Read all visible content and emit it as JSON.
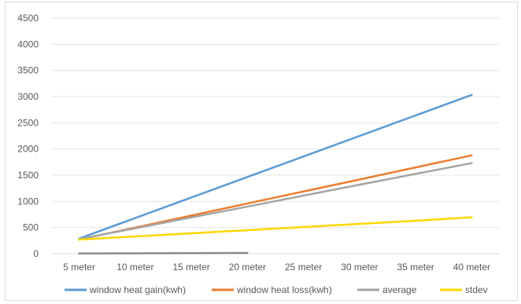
{
  "chart_data": {
    "type": "line",
    "title": "",
    "xlabel": "",
    "ylabel": "",
    "categories": [
      "5 meter",
      "10 meter",
      "15 meter",
      "20 meter",
      "25 meter",
      "30 meter",
      "35 meter",
      "40 meter"
    ],
    "ylim": [
      0,
      4500
    ],
    "yticks": [
      0,
      500,
      1000,
      1500,
      2000,
      2500,
      3000,
      3500,
      4000,
      4500
    ],
    "grid": true,
    "legend_position": "bottom",
    "series": [
      {
        "name": "window heat gain(kwh)",
        "color": "#5b9bd5",
        "values": [
          290,
          682,
          1074,
          1466,
          1857,
          2249,
          2641,
          3033
        ]
      },
      {
        "name": "window heat loss(kwh)",
        "color": "#ed7d31",
        "values": [
          270,
          500,
          729,
          959,
          1189,
          1418,
          1648,
          1878
        ]
      },
      {
        "name": "average",
        "color": "#a5a5a5",
        "values": [
          280,
          486,
          694,
          899,
          1110,
          1318,
          1524,
          1730
        ]
      },
      {
        "name": "stdev",
        "color": "#ffd700",
        "values": [
          270,
          330,
          390,
          450,
          510,
          570,
          630,
          695
        ]
      },
      {
        "name": "",
        "color": "#8c8c8c",
        "values": [
          5,
          8,
          11,
          15,
          null,
          null,
          null,
          null
        ]
      }
    ]
  }
}
